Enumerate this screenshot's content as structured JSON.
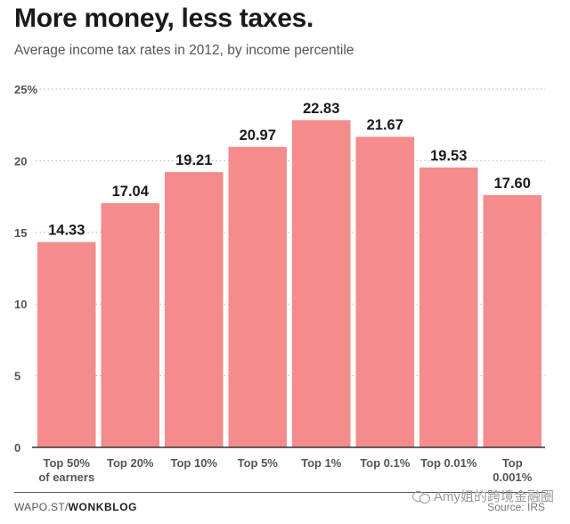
{
  "header": {
    "title": "More money, less taxes.",
    "subtitle": "Average income tax rates in 2012, by income percentile"
  },
  "footer": {
    "source_prefix": "WAPO.ST/",
    "source_brand": "WONKBLOG",
    "source_credit": "Source: IRS",
    "watermark": "Amy姐的跨境金融圈"
  },
  "chart_data": {
    "type": "bar",
    "categories": [
      [
        "Top 50%",
        "of earners"
      ],
      [
        "Top 20%"
      ],
      [
        "Top 10%"
      ],
      [
        "Top 5%"
      ],
      [
        "Top 1%"
      ],
      [
        "Top 0.1%"
      ],
      [
        "Top 0.01%"
      ],
      [
        "Top",
        "0.001%"
      ]
    ],
    "values": [
      14.33,
      17.04,
      19.21,
      20.97,
      22.83,
      21.67,
      19.53,
      17.6
    ],
    "value_labels": [
      "14.33",
      "17.04",
      "19.21",
      "20.97",
      "22.83",
      "21.67",
      "19.53",
      "17.60"
    ],
    "ylim": [
      0,
      25
    ],
    "yticks": [
      0,
      5,
      10,
      15,
      20,
      25
    ],
    "ytick_labels": [
      "0",
      "5",
      "10",
      "15",
      "20",
      "25%"
    ],
    "grid": true,
    "colors": {
      "bar": "#f48c8c",
      "grid": "#b5b5b5",
      "axis": "#333333",
      "text": "#1a1a1a",
      "tick": "#555555"
    }
  }
}
